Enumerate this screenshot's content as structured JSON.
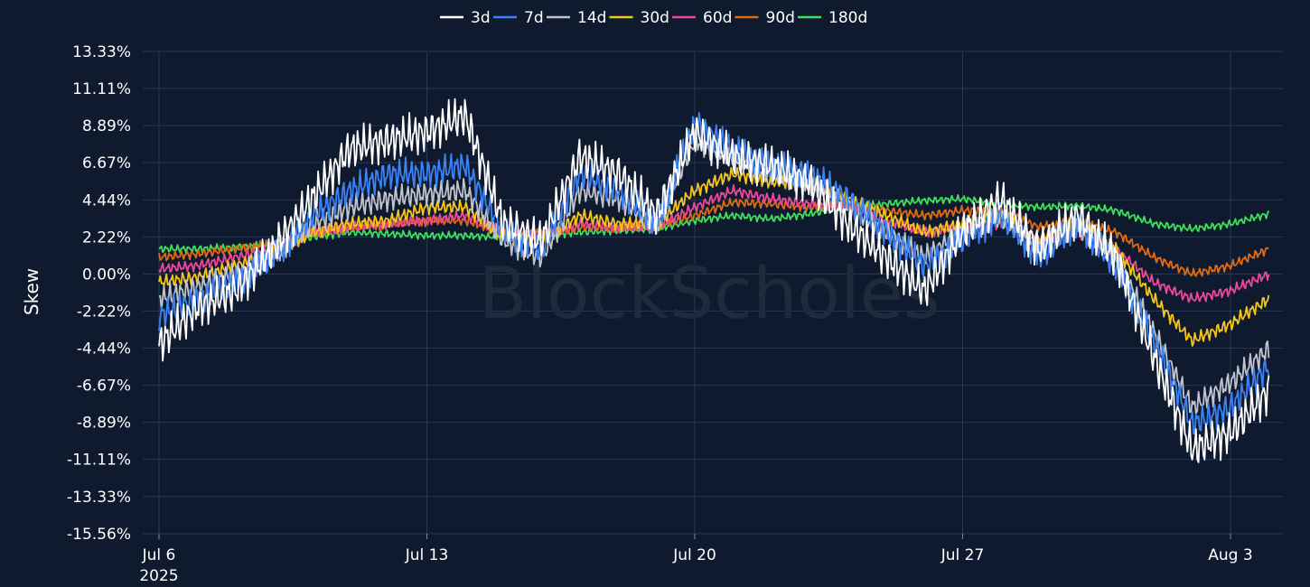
{
  "chart_data": {
    "type": "line",
    "ylabel": "Skew",
    "xlabel": "",
    "watermark": "BlockScholes",
    "legend_position": "top-center",
    "grid": true,
    "x_start": "2025-07-06",
    "x_end": "2025-08-04",
    "x_ticks": [
      "Jul 6",
      "Jul 13",
      "Jul 20",
      "Jul 27",
      "Aug 3"
    ],
    "x_year_label": "2025",
    "y_ticks": [
      "13.33%",
      "11.11%",
      "8.89%",
      "6.67%",
      "4.44%",
      "2.22%",
      "0.00%",
      "-2.22%",
      "-4.44%",
      "-6.67%",
      "-8.89%",
      "-11.11%",
      "-13.33%",
      "-15.56%"
    ],
    "ylim": [
      -15.56,
      13.33
    ],
    "series": [
      {
        "name": "3d",
        "color": "#ffffff",
        "points": [
          [
            "2025-07-06",
            -4.2
          ],
          [
            "2025-07-07",
            -2.0
          ],
          [
            "2025-07-08",
            -1.0
          ],
          [
            "2025-07-09",
            1.5
          ],
          [
            "2025-07-10",
            4.5
          ],
          [
            "2025-07-11",
            7.5
          ],
          [
            "2025-07-12",
            8.0
          ],
          [
            "2025-07-13",
            8.5
          ],
          [
            "2025-07-14",
            9.5
          ],
          [
            "2025-07-15",
            3.0
          ],
          [
            "2025-07-16",
            2.0
          ],
          [
            "2025-07-17",
            7.0
          ],
          [
            "2025-07-18",
            6.0
          ],
          [
            "2025-07-19",
            3.5
          ],
          [
            "2025-07-20",
            8.5
          ],
          [
            "2025-07-21",
            7.0
          ],
          [
            "2025-07-22",
            6.5
          ],
          [
            "2025-07-23",
            5.5
          ],
          [
            "2025-07-24",
            3.0
          ],
          [
            "2025-07-25",
            1.0
          ],
          [
            "2025-07-26",
            -1.0
          ],
          [
            "2025-07-27",
            2.5
          ],
          [
            "2025-07-28",
            4.5
          ],
          [
            "2025-07-29",
            1.5
          ],
          [
            "2025-07-30",
            3.5
          ],
          [
            "2025-07-31",
            1.0
          ],
          [
            "2025-08-01",
            -5.0
          ],
          [
            "2025-08-02",
            -10.5
          ],
          [
            "2025-08-03",
            -9.5
          ],
          [
            "2025-08-04",
            -7.0
          ]
        ]
      },
      {
        "name": "7d",
        "color": "#3b82f6",
        "points": [
          [
            "2025-07-06",
            -2.5
          ],
          [
            "2025-07-07",
            -1.5
          ],
          [
            "2025-07-08",
            -0.5
          ],
          [
            "2025-07-09",
            1.0
          ],
          [
            "2025-07-10",
            3.5
          ],
          [
            "2025-07-11",
            5.0
          ],
          [
            "2025-07-12",
            6.0
          ],
          [
            "2025-07-13",
            6.0
          ],
          [
            "2025-07-14",
            6.5
          ],
          [
            "2025-07-15",
            2.5
          ],
          [
            "2025-07-16",
            1.5
          ],
          [
            "2025-07-17",
            6.0
          ],
          [
            "2025-07-18",
            5.0
          ],
          [
            "2025-07-19",
            3.0
          ],
          [
            "2025-07-20",
            9.0
          ],
          [
            "2025-07-21",
            7.5
          ],
          [
            "2025-07-22",
            6.5
          ],
          [
            "2025-07-23",
            6.0
          ],
          [
            "2025-07-24",
            4.5
          ],
          [
            "2025-07-25",
            2.5
          ],
          [
            "2025-07-26",
            0.5
          ],
          [
            "2025-07-27",
            2.0
          ],
          [
            "2025-07-28",
            3.5
          ],
          [
            "2025-07-29",
            1.0
          ],
          [
            "2025-07-30",
            3.0
          ],
          [
            "2025-07-31",
            0.5
          ],
          [
            "2025-08-01",
            -4.0
          ],
          [
            "2025-08-02",
            -9.0
          ],
          [
            "2025-08-03",
            -8.0
          ],
          [
            "2025-08-04",
            -5.5
          ]
        ]
      },
      {
        "name": "14d",
        "color": "#c0c4cc",
        "points": [
          [
            "2025-07-06",
            -1.5
          ],
          [
            "2025-07-07",
            -0.8
          ],
          [
            "2025-07-08",
            0.0
          ],
          [
            "2025-07-09",
            1.2
          ],
          [
            "2025-07-10",
            3.0
          ],
          [
            "2025-07-11",
            4.0
          ],
          [
            "2025-07-12",
            4.5
          ],
          [
            "2025-07-13",
            4.8
          ],
          [
            "2025-07-14",
            5.0
          ],
          [
            "2025-07-15",
            2.0
          ],
          [
            "2025-07-16",
            1.0
          ],
          [
            "2025-07-17",
            5.0
          ],
          [
            "2025-07-18",
            4.5
          ],
          [
            "2025-07-19",
            3.0
          ],
          [
            "2025-07-20",
            8.0
          ],
          [
            "2025-07-21",
            7.0
          ],
          [
            "2025-07-22",
            6.0
          ],
          [
            "2025-07-23",
            5.5
          ],
          [
            "2025-07-24",
            4.0
          ],
          [
            "2025-07-25",
            2.5
          ],
          [
            "2025-07-26",
            1.0
          ],
          [
            "2025-07-27",
            2.5
          ],
          [
            "2025-07-28",
            3.5
          ],
          [
            "2025-07-29",
            1.5
          ],
          [
            "2025-07-30",
            3.0
          ],
          [
            "2025-07-31",
            1.0
          ],
          [
            "2025-08-01",
            -3.5
          ],
          [
            "2025-08-02",
            -8.0
          ],
          [
            "2025-08-03",
            -6.5
          ],
          [
            "2025-08-04",
            -4.5
          ]
        ]
      },
      {
        "name": "30d",
        "color": "#f5c518",
        "points": [
          [
            "2025-07-06",
            -0.5
          ],
          [
            "2025-07-07",
            -0.2
          ],
          [
            "2025-07-08",
            0.5
          ],
          [
            "2025-07-09",
            1.2
          ],
          [
            "2025-07-10",
            2.5
          ],
          [
            "2025-07-11",
            3.0
          ],
          [
            "2025-07-12",
            3.2
          ],
          [
            "2025-07-13",
            4.0
          ],
          [
            "2025-07-14",
            4.0
          ],
          [
            "2025-07-15",
            2.2
          ],
          [
            "2025-07-16",
            2.0
          ],
          [
            "2025-07-17",
            3.5
          ],
          [
            "2025-07-18",
            3.0
          ],
          [
            "2025-07-19",
            3.0
          ],
          [
            "2025-07-20",
            5.0
          ],
          [
            "2025-07-21",
            6.0
          ],
          [
            "2025-07-22",
            5.5
          ],
          [
            "2025-07-23",
            5.5
          ],
          [
            "2025-07-24",
            4.5
          ],
          [
            "2025-07-25",
            3.5
          ],
          [
            "2025-07-26",
            2.5
          ],
          [
            "2025-07-27",
            3.0
          ],
          [
            "2025-07-28",
            3.5
          ],
          [
            "2025-07-29",
            2.0
          ],
          [
            "2025-07-30",
            3.0
          ],
          [
            "2025-07-31",
            1.5
          ],
          [
            "2025-08-01",
            -1.5
          ],
          [
            "2025-08-02",
            -4.0
          ],
          [
            "2025-08-03",
            -3.0
          ],
          [
            "2025-08-04",
            -1.5
          ]
        ]
      },
      {
        "name": "60d",
        "color": "#ec4899",
        "points": [
          [
            "2025-07-06",
            0.3
          ],
          [
            "2025-07-07",
            0.5
          ],
          [
            "2025-07-08",
            1.0
          ],
          [
            "2025-07-09",
            1.5
          ],
          [
            "2025-07-10",
            2.5
          ],
          [
            "2025-07-11",
            2.8
          ],
          [
            "2025-07-12",
            3.0
          ],
          [
            "2025-07-13",
            3.2
          ],
          [
            "2025-07-14",
            3.5
          ],
          [
            "2025-07-15",
            2.5
          ],
          [
            "2025-07-16",
            2.3
          ],
          [
            "2025-07-17",
            3.0
          ],
          [
            "2025-07-18",
            2.8
          ],
          [
            "2025-07-19",
            2.8
          ],
          [
            "2025-07-20",
            4.0
          ],
          [
            "2025-07-21",
            5.0
          ],
          [
            "2025-07-22",
            4.5
          ],
          [
            "2025-07-23",
            4.2
          ],
          [
            "2025-07-24",
            4.0
          ],
          [
            "2025-07-25",
            3.2
          ],
          [
            "2025-07-26",
            2.5
          ],
          [
            "2025-07-27",
            2.8
          ],
          [
            "2025-07-28",
            3.0
          ],
          [
            "2025-07-29",
            2.0
          ],
          [
            "2025-07-30",
            2.5
          ],
          [
            "2025-07-31",
            1.5
          ],
          [
            "2025-08-01",
            -0.5
          ],
          [
            "2025-08-02",
            -1.5
          ],
          [
            "2025-08-03",
            -1.0
          ],
          [
            "2025-08-04",
            0.0
          ]
        ]
      },
      {
        "name": "90d",
        "color": "#e06b12",
        "points": [
          [
            "2025-07-06",
            1.0
          ],
          [
            "2025-07-07",
            1.2
          ],
          [
            "2025-07-08",
            1.5
          ],
          [
            "2025-07-09",
            1.8
          ],
          [
            "2025-07-10",
            2.5
          ],
          [
            "2025-07-11",
            2.8
          ],
          [
            "2025-07-12",
            3.0
          ],
          [
            "2025-07-13",
            3.2
          ],
          [
            "2025-07-14",
            3.2
          ],
          [
            "2025-07-15",
            2.5
          ],
          [
            "2025-07-16",
            2.4
          ],
          [
            "2025-07-17",
            2.8
          ],
          [
            "2025-07-18",
            2.8
          ],
          [
            "2025-07-19",
            2.9
          ],
          [
            "2025-07-20",
            3.5
          ],
          [
            "2025-07-21",
            4.3
          ],
          [
            "2025-07-22",
            4.2
          ],
          [
            "2025-07-23",
            4.0
          ],
          [
            "2025-07-24",
            4.2
          ],
          [
            "2025-07-25",
            3.8
          ],
          [
            "2025-07-26",
            3.5
          ],
          [
            "2025-07-27",
            3.8
          ],
          [
            "2025-07-28",
            3.8
          ],
          [
            "2025-07-29",
            2.8
          ],
          [
            "2025-07-30",
            3.2
          ],
          [
            "2025-07-31",
            2.5
          ],
          [
            "2025-08-01",
            1.0
          ],
          [
            "2025-08-02",
            0.0
          ],
          [
            "2025-08-03",
            0.5
          ],
          [
            "2025-08-04",
            1.5
          ]
        ]
      },
      {
        "name": "180d",
        "color": "#3ee05a",
        "points": [
          [
            "2025-07-06",
            1.5
          ],
          [
            "2025-07-07",
            1.5
          ],
          [
            "2025-07-08",
            1.6
          ],
          [
            "2025-07-09",
            1.8
          ],
          [
            "2025-07-10",
            2.2
          ],
          [
            "2025-07-11",
            2.5
          ],
          [
            "2025-07-12",
            2.4
          ],
          [
            "2025-07-13",
            2.3
          ],
          [
            "2025-07-14",
            2.3
          ],
          [
            "2025-07-15",
            2.2
          ],
          [
            "2025-07-16",
            2.3
          ],
          [
            "2025-07-17",
            2.5
          ],
          [
            "2025-07-18",
            2.6
          ],
          [
            "2025-07-19",
            2.7
          ],
          [
            "2025-07-20",
            3.2
          ],
          [
            "2025-07-21",
            3.5
          ],
          [
            "2025-07-22",
            3.3
          ],
          [
            "2025-07-23",
            3.6
          ],
          [
            "2025-07-24",
            4.0
          ],
          [
            "2025-07-25",
            4.2
          ],
          [
            "2025-07-26",
            4.4
          ],
          [
            "2025-07-27",
            4.5
          ],
          [
            "2025-07-28",
            4.2
          ],
          [
            "2025-07-29",
            4.0
          ],
          [
            "2025-07-30",
            4.1
          ],
          [
            "2025-07-31",
            3.8
          ],
          [
            "2025-08-01",
            3.0
          ],
          [
            "2025-08-02",
            2.7
          ],
          [
            "2025-08-03",
            3.0
          ],
          [
            "2025-08-04",
            3.6
          ]
        ]
      }
    ]
  }
}
